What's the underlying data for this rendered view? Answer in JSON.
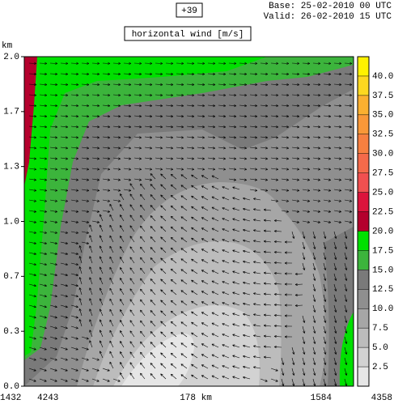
{
  "header": {
    "forecast": "+39",
    "base": "Base: 25-02-2010  00 UTC",
    "valid": "Valid: 26-02-2010  15 UTC"
  },
  "chart_data": {
    "type": "contour",
    "title": "horizontal wind [m/s]",
    "ylabel": "km",
    "ylim": [
      0,
      2
    ],
    "yticks": [
      {
        "value": 0,
        "label": "0.0"
      },
      {
        "value": 0.3333,
        "label": "0.3"
      },
      {
        "value": 0.6667,
        "label": "0.7"
      },
      {
        "value": 1,
        "label": "1.0"
      },
      {
        "value": 1.3333,
        "label": "1.3"
      },
      {
        "value": 1.6667,
        "label": "1.7"
      },
      {
        "value": 2,
        "label": "2.0"
      }
    ],
    "x_labels": [
      "1432",
      "4243",
      "178 km",
      "1584",
      "4358"
    ],
    "colorbar": {
      "levels": [
        0,
        2.5,
        5,
        7.5,
        10,
        12.5,
        15,
        17.5,
        20,
        22.5,
        25,
        27.5,
        30,
        32.5,
        35,
        37.5,
        40,
        42.5
      ],
      "colors": [
        "#e6e6e6",
        "#d2d2d2",
        "#bcbcbc",
        "#a6a6a6",
        "#8f8f8f",
        "#7a7a7a",
        "#3cb43c",
        "#00e000",
        "#b4002d",
        "#dc143c",
        "#f05050",
        "#f46a4a",
        "#f78040",
        "#f99838",
        "#fbb030",
        "#fdd820",
        "#fff200"
      ],
      "ticks": [
        {
          "value": 2.5,
          "label": "2.5"
        },
        {
          "value": 5,
          "label": "5.0"
        },
        {
          "value": 7.5,
          "label": "7.5"
        },
        {
          "value": 10,
          "label": "10.0"
        },
        {
          "value": 12.5,
          "label": "12.5"
        },
        {
          "value": 15,
          "label": "15.0"
        },
        {
          "value": 17.5,
          "label": "17.5"
        },
        {
          "value": 20,
          "label": "20.0"
        },
        {
          "value": 22.5,
          "label": "22.5"
        },
        {
          "value": 25,
          "label": "25.0"
        },
        {
          "value": 27.5,
          "label": "27.5"
        },
        {
          "value": 30,
          "label": "30.0"
        },
        {
          "value": 32.5,
          "label": "32.5"
        },
        {
          "value": 35,
          "label": "35.0"
        },
        {
          "value": 37.5,
          "label": "37.5"
        },
        {
          "value": 40,
          "label": "40.0"
        }
      ]
    }
  }
}
